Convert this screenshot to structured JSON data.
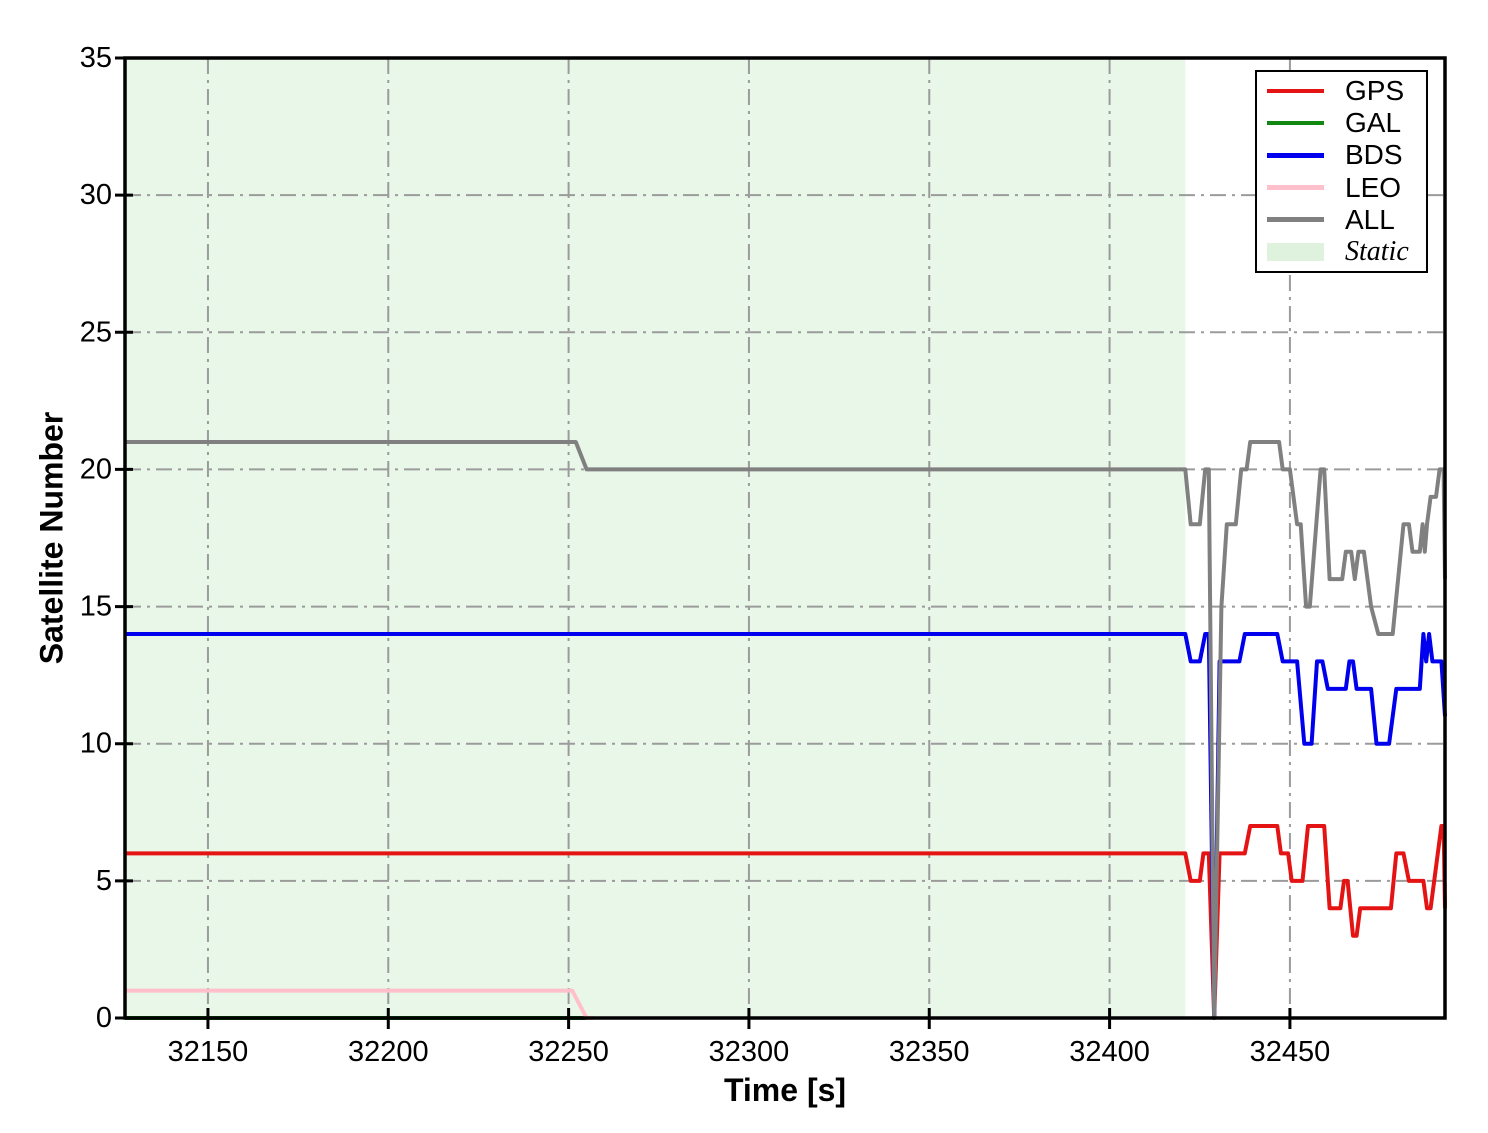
{
  "chart_data": {
    "type": "line",
    "title": "",
    "xlabel": "Time [s]",
    "ylabel": "Satellite Number",
    "xlim": [
      32127,
      32493
    ],
    "ylim": [
      0,
      35
    ],
    "xticks": [
      32150,
      32200,
      32250,
      32300,
      32350,
      32400,
      32450
    ],
    "yticks": [
      0,
      5,
      10,
      15,
      20,
      25,
      30,
      35
    ],
    "grid": true,
    "grid_linestyle": "dash-dot",
    "grid_color": "#9b9b9b",
    "axis_color": "#000000",
    "legend_position": "upper right",
    "static_region": {
      "label": "Static",
      "x_start": 32127,
      "x_end": 32421,
      "fill": "#e9f7e9",
      "legend_swatch_fill": "#def2de"
    },
    "series": [
      {
        "name": "GPS",
        "color": "#e51414",
        "points": [
          [
            32127,
            6
          ],
          [
            32421,
            6
          ],
          [
            32422.5,
            5
          ],
          [
            32425,
            5
          ],
          [
            32426,
            6
          ],
          [
            32427.5,
            6
          ],
          [
            32429,
            0
          ],
          [
            32430.5,
            6
          ],
          [
            32437.5,
            6
          ],
          [
            32439,
            7
          ],
          [
            32446.5,
            7
          ],
          [
            32447.5,
            6
          ],
          [
            32449.5,
            6
          ],
          [
            32450.5,
            5
          ],
          [
            32453.5,
            5
          ],
          [
            32455,
            7
          ],
          [
            32459.5,
            7
          ],
          [
            32461,
            4
          ],
          [
            32464,
            4
          ],
          [
            32465,
            5
          ],
          [
            32466,
            5
          ],
          [
            32467.5,
            3
          ],
          [
            32468.5,
            3
          ],
          [
            32469.5,
            4
          ],
          [
            32478,
            4
          ],
          [
            32479.5,
            6
          ],
          [
            32481.5,
            6
          ],
          [
            32483,
            5
          ],
          [
            32487,
            5
          ],
          [
            32488,
            4
          ],
          [
            32489,
            4
          ],
          [
            32491,
            6
          ],
          [
            32492,
            7
          ],
          [
            32492.6,
            7
          ],
          [
            32493,
            4
          ]
        ]
      },
      {
        "name": "GAL",
        "color": "#118811",
        "points": [
          [
            32127,
            0
          ],
          [
            32256,
            0
          ]
        ]
      },
      {
        "name": "BDS",
        "color": "#0000ee",
        "points": [
          [
            32127,
            14
          ],
          [
            32421,
            14
          ],
          [
            32422.5,
            13
          ],
          [
            32425,
            13
          ],
          [
            32426.5,
            14
          ],
          [
            32427.5,
            14
          ],
          [
            32429,
            0
          ],
          [
            32430.5,
            13
          ],
          [
            32436,
            13
          ],
          [
            32437.5,
            14
          ],
          [
            32446.5,
            14
          ],
          [
            32448,
            13
          ],
          [
            32452,
            13
          ],
          [
            32454,
            10
          ],
          [
            32456,
            10
          ],
          [
            32457.5,
            13
          ],
          [
            32459,
            13
          ],
          [
            32460.5,
            12
          ],
          [
            32465.5,
            12
          ],
          [
            32466.5,
            13
          ],
          [
            32467.5,
            13
          ],
          [
            32468.5,
            12
          ],
          [
            32472.5,
            12
          ],
          [
            32474,
            10
          ],
          [
            32477.5,
            10
          ],
          [
            32479.5,
            12
          ],
          [
            32486,
            12
          ],
          [
            32487,
            14
          ],
          [
            32487.8,
            13
          ],
          [
            32488.6,
            14
          ],
          [
            32489.5,
            13
          ],
          [
            32492,
            13
          ],
          [
            32493,
            11
          ]
        ]
      },
      {
        "name": "LEO",
        "color": "#ffc0cb",
        "points": [
          [
            32127,
            1
          ],
          [
            32251,
            1
          ],
          [
            32255,
            0
          ],
          [
            32257,
            0
          ]
        ]
      },
      {
        "name": "ALL",
        "color": "#808080",
        "points": [
          [
            32127,
            21
          ],
          [
            32252,
            21
          ],
          [
            32255,
            20
          ],
          [
            32421,
            20
          ],
          [
            32422.5,
            18
          ],
          [
            32425,
            18
          ],
          [
            32426.5,
            20
          ],
          [
            32427.5,
            20
          ],
          [
            32429,
            0
          ],
          [
            32431,
            15
          ],
          [
            32432.5,
            18
          ],
          [
            32435,
            18
          ],
          [
            32436.5,
            20
          ],
          [
            32438,
            20
          ],
          [
            32439,
            21
          ],
          [
            32447,
            21
          ],
          [
            32448,
            20
          ],
          [
            32450,
            20
          ],
          [
            32452,
            18
          ],
          [
            32453,
            18
          ],
          [
            32454.5,
            15
          ],
          [
            32455.5,
            15
          ],
          [
            32458.5,
            20
          ],
          [
            32459.5,
            20
          ],
          [
            32461,
            16
          ],
          [
            32464.5,
            16
          ],
          [
            32465.5,
            17
          ],
          [
            32467,
            17
          ],
          [
            32468,
            16
          ],
          [
            32469,
            17
          ],
          [
            32470.5,
            17
          ],
          [
            32471.5,
            16
          ],
          [
            32472.5,
            15
          ],
          [
            32474.5,
            14
          ],
          [
            32478.5,
            14
          ],
          [
            32481.5,
            18
          ],
          [
            32483,
            18
          ],
          [
            32484,
            17
          ],
          [
            32486,
            17
          ],
          [
            32486.8,
            18
          ],
          [
            32487.4,
            17
          ],
          [
            32488,
            18
          ],
          [
            32489,
            19
          ],
          [
            32490.5,
            19
          ],
          [
            32491.5,
            20
          ],
          [
            32492.6,
            20
          ],
          [
            32493,
            16
          ]
        ]
      }
    ]
  }
}
